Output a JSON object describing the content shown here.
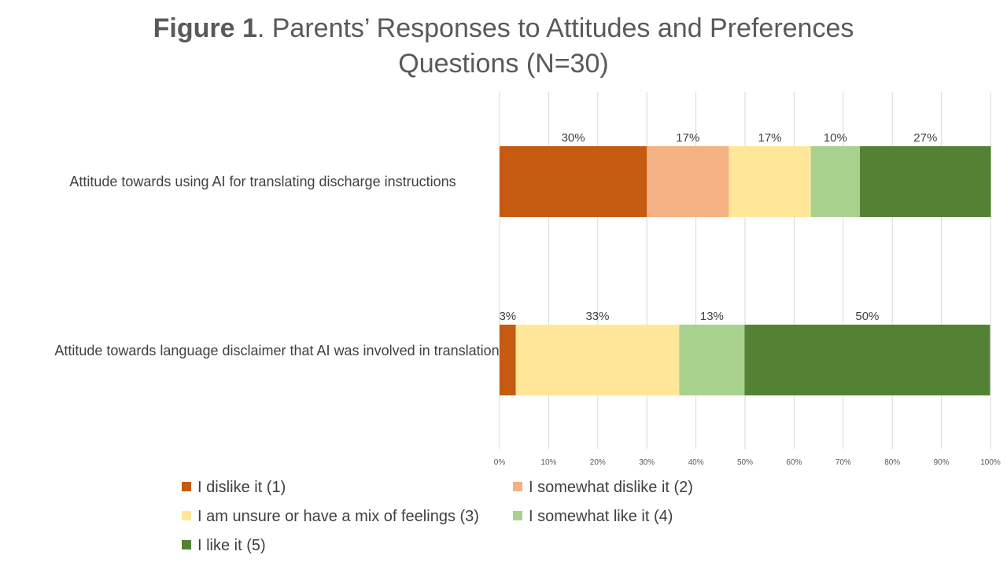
{
  "title": {
    "prefix": "Figure 1",
    "text": ". Parents’ Responses to Attitudes and Preferences Questions (N=30)"
  },
  "chart_data": {
    "type": "bar",
    "orientation": "horizontal",
    "stacked": "percent",
    "categories": [
      "Attitude towards using AI for translating discharge instructions",
      "Attitude towards language disclaimer that AI was involved in translation"
    ],
    "series": [
      {
        "name": "I dislike it (1)",
        "color": "#C55A11",
        "values": [
          30,
          3.3
        ],
        "labels": [
          "30%",
          "3%"
        ]
      },
      {
        "name": "I somewhat dislike it (2)",
        "color": "#F4B183",
        "values": [
          16.7,
          0
        ],
        "labels": [
          "17%",
          ""
        ]
      },
      {
        "name": "I am unsure or have a mix of feelings (3)",
        "color": "#FFE699",
        "values": [
          16.7,
          33.3
        ],
        "labels": [
          "17%",
          "33%"
        ]
      },
      {
        "name": "I somewhat like it (4)",
        "color": "#A9D18E",
        "values": [
          10,
          13.3
        ],
        "labels": [
          "10%",
          "13%"
        ]
      },
      {
        "name": "I like it (5)",
        "color": "#548235",
        "values": [
          26.7,
          50
        ],
        "labels": [
          "27%",
          "50%"
        ]
      }
    ],
    "xlim": [
      0,
      100
    ],
    "xticks": [
      "0%",
      "10%",
      "20%",
      "30%",
      "40%",
      "50%",
      "60%",
      "70%",
      "80%",
      "90%",
      "100%"
    ],
    "grid": true,
    "legend_position": "bottom"
  }
}
